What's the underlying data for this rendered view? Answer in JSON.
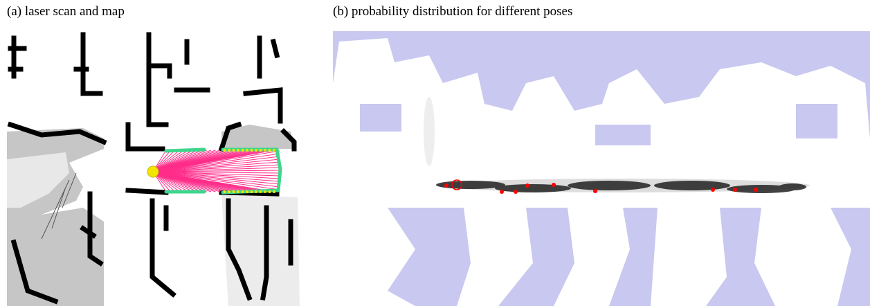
{
  "panels": [
    {
      "caption": "(a) laser scan and map"
    },
    {
      "caption": "(b) probability distribution for different poses"
    }
  ]
}
